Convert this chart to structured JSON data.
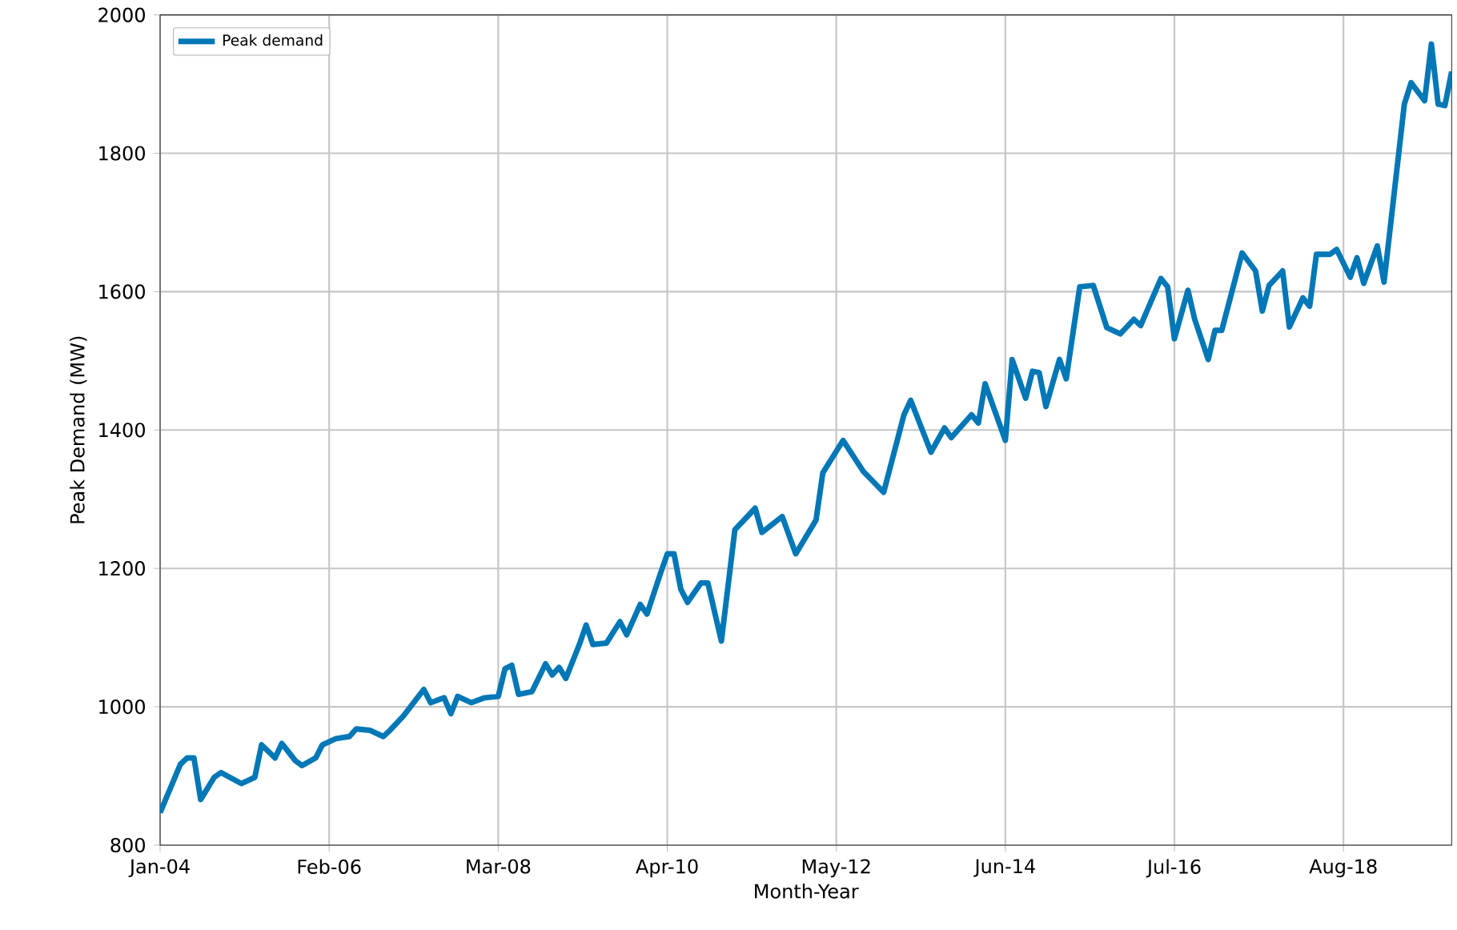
{
  "chart_data": {
    "type": "line",
    "xlabel": "Month-Year",
    "ylabel": "Peak Demand (MW)",
    "xlim": [
      "2004-01",
      "2019-12"
    ],
    "xticks": [
      {
        "value": "2004-01",
        "label": "Jan-04"
      },
      {
        "value": "2006-02",
        "label": "Feb-06"
      },
      {
        "value": "2008-03",
        "label": "Mar-08"
      },
      {
        "value": "2010-04",
        "label": "Apr-10"
      },
      {
        "value": "2012-05",
        "label": "May-12"
      },
      {
        "value": "2014-06",
        "label": "Jun-14"
      },
      {
        "value": "2016-07",
        "label": "Jul-16"
      },
      {
        "value": "2018-08",
        "label": "Aug-18"
      }
    ],
    "ylim": [
      800,
      2000
    ],
    "yticks": [
      800,
      1000,
      1200,
      1400,
      1600,
      1800,
      2000
    ],
    "grid": true,
    "legend": "top left",
    "line_style": "solid",
    "x": [
      "2004-01",
      "2004-04",
      "2004-05",
      "2004-06",
      "2004-07",
      "2004-09",
      "2004-10",
      "2005-01",
      "2005-03",
      "2005-04",
      "2005-06",
      "2005-07",
      "2005-09",
      "2005-10",
      "2005-12",
      "2006-01",
      "2006-03",
      "2006-05",
      "2006-06",
      "2006-08",
      "2006-10",
      "2006-11",
      "2007-01",
      "2007-04",
      "2007-05",
      "2007-07",
      "2007-08",
      "2007-09",
      "2007-11",
      "2008-01",
      "2008-03",
      "2008-04",
      "2008-05",
      "2008-06",
      "2008-08",
      "2008-10",
      "2008-11",
      "2008-12",
      "2009-01",
      "2009-03",
      "2009-04",
      "2009-05",
      "2009-07",
      "2009-09",
      "2009-10",
      "2009-12",
      "2010-01",
      "2010-03",
      "2010-04",
      "2010-05",
      "2010-06",
      "2010-07",
      "2010-09",
      "2010-10",
      "2010-12",
      "2011-02",
      "2011-05",
      "2011-06",
      "2011-09",
      "2011-11",
      "2012-02",
      "2012-03",
      "2012-06",
      "2012-09",
      "2012-12",
      "2013-03",
      "2013-04",
      "2013-07",
      "2013-09",
      "2013-10",
      "2014-01",
      "2014-02",
      "2014-03",
      "2014-06",
      "2014-07",
      "2014-09",
      "2014-10",
      "2014-11",
      "2014-12",
      "2015-02",
      "2015-03",
      "2015-05",
      "2015-07",
      "2015-09",
      "2015-11",
      "2016-01",
      "2016-02",
      "2016-05",
      "2016-06",
      "2016-07",
      "2016-09",
      "2016-10",
      "2016-12",
      "2017-01",
      "2017-02",
      "2017-05",
      "2017-07",
      "2017-08",
      "2017-09",
      "2017-11",
      "2017-12",
      "2018-02",
      "2018-03",
      "2018-04",
      "2018-06",
      "2018-07",
      "2018-09",
      "2018-10",
      "2018-11",
      "2019-01",
      "2019-02",
      "2019-05",
      "2019-06",
      "2019-08",
      "2019-09",
      "2019-10",
      "2019-11",
      "2019-12"
    ],
    "series": [
      {
        "name": "Peak demand",
        "color": "#0077b6",
        "values": [
          847,
          917,
          926,
          926,
          866,
          898,
          905,
          889,
          898,
          945,
          926,
          947,
          922,
          915,
          926,
          945,
          954,
          957,
          968,
          966,
          957,
          966,
          987,
          1025,
          1006,
          1013,
          990,
          1015,
          1006,
          1013,
          1015,
          1055,
          1060,
          1018,
          1022,
          1062,
          1046,
          1057,
          1041,
          1090,
          1118,
          1090,
          1092,
          1123,
          1104,
          1148,
          1134,
          1193,
          1221,
          1221,
          1170,
          1151,
          1179,
          1179,
          1095,
          1256,
          1287,
          1252,
          1275,
          1221,
          1270,
          1338,
          1385,
          1340,
          1310,
          1422,
          1443,
          1368,
          1403,
          1389,
          1422,
          1410,
          1467,
          1385,
          1502,
          1446,
          1485,
          1483,
          1434,
          1502,
          1474,
          1607,
          1609,
          1548,
          1539,
          1560,
          1551,
          1619,
          1607,
          1532,
          1602,
          1560,
          1502,
          1544,
          1544,
          1656,
          1630,
          1572,
          1609,
          1630,
          1549,
          1591,
          1579,
          1654,
          1654,
          1661,
          1621,
          1649,
          1612,
          1666,
          1614,
          1871,
          1902,
          1876,
          1958,
          1871,
          1869,
          1918
        ]
      }
    ]
  }
}
